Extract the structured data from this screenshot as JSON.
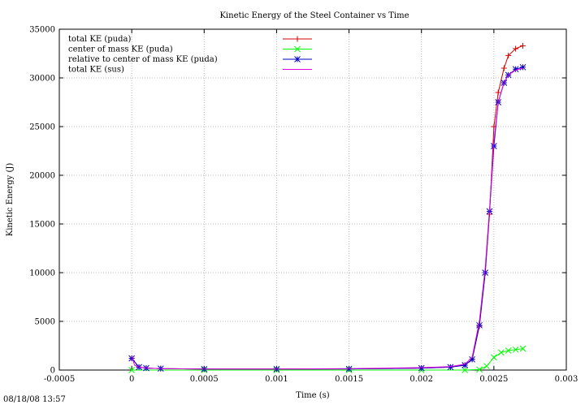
{
  "chart_data": {
    "type": "line",
    "title": "Kinetic Energy of the Steel Container vs Time",
    "xlabel": "Time (s)",
    "ylabel": "Kinetic Energy (J)",
    "xlim": [
      -0.0005,
      0.003
    ],
    "ylim": [
      0,
      35000
    ],
    "xticks": [
      "-0.0005",
      "0",
      "0.0005",
      "0.001",
      "0.0015",
      "0.002",
      "0.0025",
      "0.003"
    ],
    "yticks": [
      "0",
      "5000",
      "10000",
      "15000",
      "20000",
      "25000",
      "30000",
      "35000"
    ],
    "grid": true,
    "legend_position": "top-left",
    "series": [
      {
        "name": "total KE (puda)",
        "color": "#d00000",
        "marker": "plus",
        "x": [
          0,
          5e-05,
          0.0001,
          0.0002,
          0.0005,
          0.001,
          0.0015,
          0.002,
          0.0022,
          0.0023,
          0.00235,
          0.0024,
          0.00244,
          0.00247,
          0.0025,
          0.00253,
          0.00257,
          0.0026,
          0.00265,
          0.0027
        ],
        "y": [
          1200,
          300,
          200,
          150,
          100,
          100,
          120,
          200,
          300,
          500,
          1100,
          4500,
          10000,
          16000,
          25000,
          28500,
          31000,
          32300,
          33000,
          33300
        ]
      },
      {
        "name": "center of mass KE (puda)",
        "color": "#00ff00",
        "marker": "cross",
        "x": [
          0,
          0.0005,
          0.001,
          0.0015,
          0.002,
          0.0023,
          0.0024,
          0.00245,
          0.0025,
          0.00255,
          0.0026,
          0.00265,
          0.0027
        ],
        "y": [
          0,
          0,
          0,
          0,
          0,
          0,
          50,
          400,
          1300,
          1800,
          2000,
          2100,
          2200
        ]
      },
      {
        "name": "relative to center of mass KE (puda)",
        "color": "#0000c0",
        "marker": "star",
        "x": [
          0,
          5e-05,
          0.0001,
          0.0002,
          0.0005,
          0.001,
          0.0015,
          0.002,
          0.0022,
          0.0023,
          0.00235,
          0.0024,
          0.00244,
          0.00247,
          0.0025,
          0.00253,
          0.00257,
          0.0026,
          0.00265,
          0.0027
        ],
        "y": [
          1200,
          300,
          200,
          150,
          100,
          100,
          120,
          200,
          300,
          500,
          1100,
          4600,
          10000,
          16300,
          23000,
          27500,
          29500,
          30300,
          30900,
          31100
        ]
      },
      {
        "name": "total KE (sus)",
        "color": "#e000e0",
        "marker": "none",
        "x": [
          0,
          2e-05,
          5e-05,
          0.0001,
          0.0002,
          0.0005,
          0.001,
          0.0015,
          0.002,
          0.0022,
          0.0023,
          0.00235,
          0.0024,
          0.00244,
          0.00247,
          0.0025,
          0.00253,
          0.00257,
          0.0026,
          0.00265,
          0.0027
        ],
        "y": [
          1400,
          500,
          300,
          200,
          150,
          100,
          100,
          150,
          250,
          350,
          600,
          1300,
          5000,
          10500,
          16500,
          23500,
          27500,
          29500,
          30300,
          30800,
          31000
        ]
      }
    ]
  },
  "footer": {
    "timestamp": "08/18/08 13:57"
  }
}
